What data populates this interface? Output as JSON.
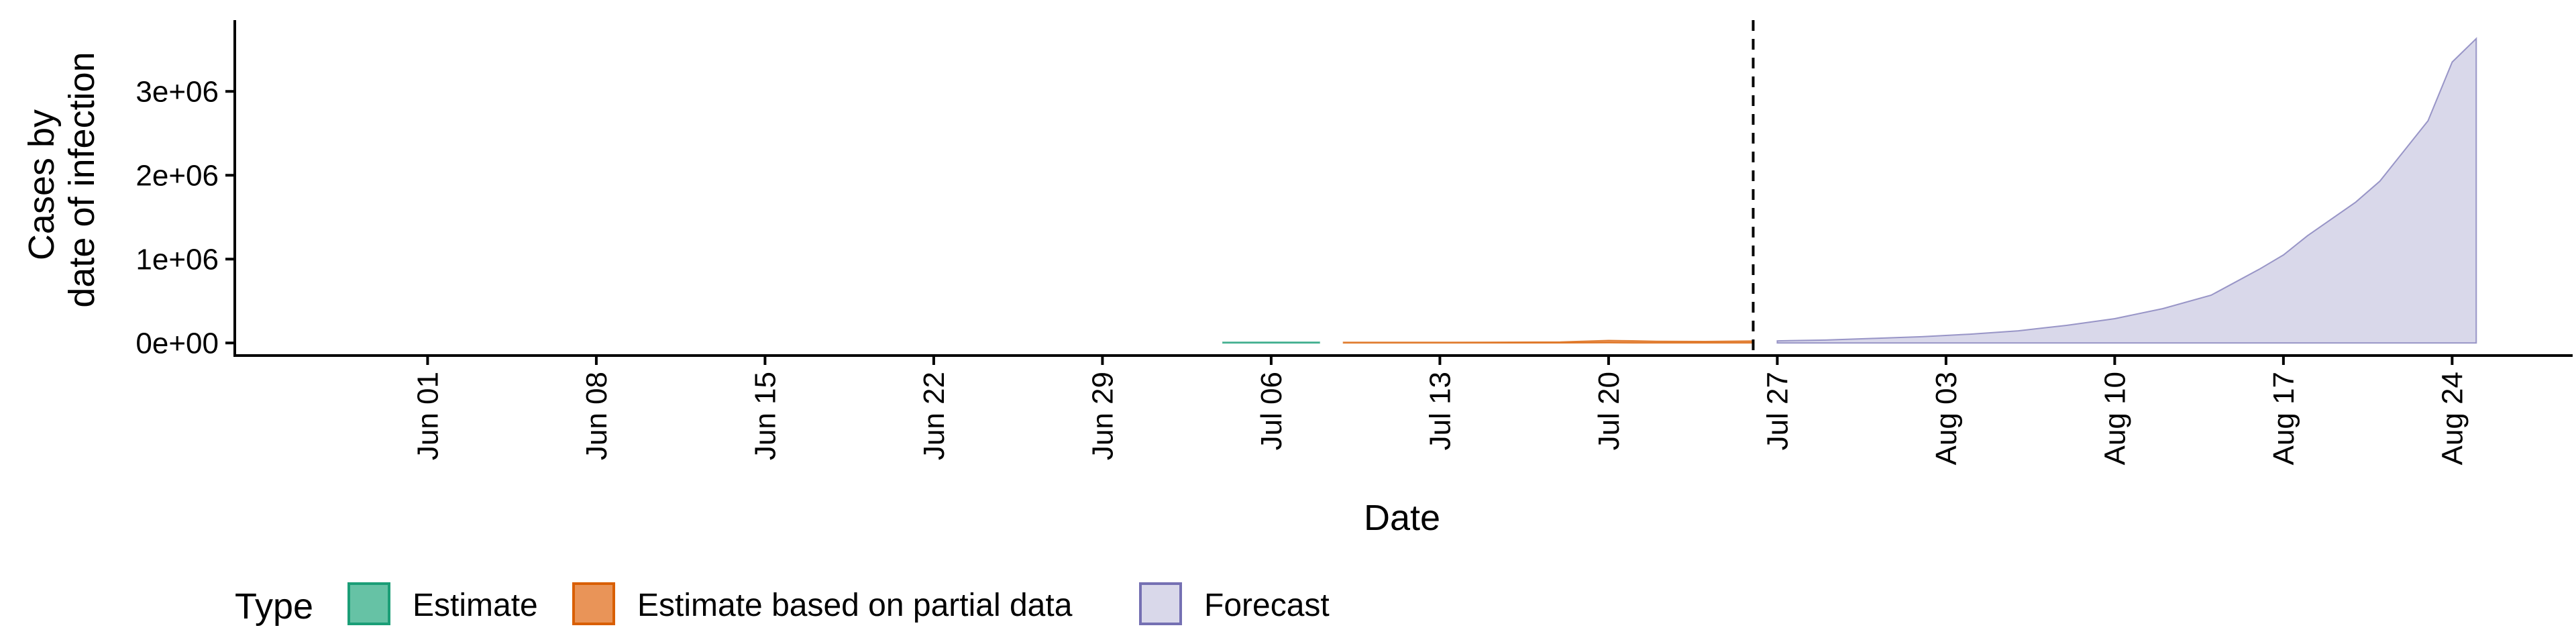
{
  "chart_data": {
    "type": "area",
    "xlabel": "Date",
    "ylabel": [
      "Cases by",
      "date of infection"
    ],
    "y_ticks": [
      {
        "value": 0,
        "label": "0e+00"
      },
      {
        "value": 1000000,
        "label": "1e+06"
      },
      {
        "value": 2000000,
        "label": "2e+06"
      },
      {
        "value": 3000000,
        "label": "3e+06"
      }
    ],
    "ylim": [
      -150000,
      3850000
    ],
    "xlim": [
      "2020-05-24",
      "2020-08-29"
    ],
    "x_ticks": [
      {
        "date": "2020-06-01",
        "label": "Jun 01"
      },
      {
        "date": "2020-06-08",
        "label": "Jun 08"
      },
      {
        "date": "2020-06-15",
        "label": "Jun 15"
      },
      {
        "date": "2020-06-22",
        "label": "Jun 22"
      },
      {
        "date": "2020-06-29",
        "label": "Jun 29"
      },
      {
        "date": "2020-07-06",
        "label": "Jul 06"
      },
      {
        "date": "2020-07-13",
        "label": "Jul 13"
      },
      {
        "date": "2020-07-20",
        "label": "Jul 20"
      },
      {
        "date": "2020-07-27",
        "label": "Jul 27"
      },
      {
        "date": "2020-08-03",
        "label": "Aug 03"
      },
      {
        "date": "2020-08-10",
        "label": "Aug 10"
      },
      {
        "date": "2020-08-17",
        "label": "Aug 17"
      },
      {
        "date": "2020-08-24",
        "label": "Aug 24"
      }
    ],
    "vline": {
      "date": "2020-07-26",
      "style": "dashed"
    },
    "legend": {
      "title": "Type",
      "position": "bottom"
    },
    "series": [
      {
        "name": "Estimate",
        "fill": "#66C2A5",
        "stroke": "#1B9E77",
        "points": [
          {
            "date": "2020-07-04",
            "lower": 0,
            "upper": 8000
          },
          {
            "date": "2020-07-06",
            "lower": 0,
            "upper": 9000
          },
          {
            "date": "2020-07-08",
            "lower": 0,
            "upper": 9000
          }
        ]
      },
      {
        "name": "Estimate based on partial data",
        "fill": "#E99458",
        "stroke": "#D95F02",
        "points": [
          {
            "date": "2020-07-09",
            "lower": 0,
            "upper": 8000
          },
          {
            "date": "2020-07-12",
            "lower": 0,
            "upper": 8000
          },
          {
            "date": "2020-07-15",
            "lower": 0,
            "upper": 9000
          },
          {
            "date": "2020-07-18",
            "lower": 0,
            "upper": 12000
          },
          {
            "date": "2020-07-20",
            "lower": 2000,
            "upper": 30000
          },
          {
            "date": "2020-07-21",
            "lower": 0,
            "upper": 26000
          },
          {
            "date": "2020-07-22",
            "lower": 0,
            "upper": 20000
          },
          {
            "date": "2020-07-24",
            "lower": 0,
            "upper": 18000
          },
          {
            "date": "2020-07-26",
            "lower": 0,
            "upper": 24000
          }
        ]
      },
      {
        "name": "Forecast",
        "fill": "#D9D8EA",
        "stroke": "#7570B3",
        "points": [
          {
            "date": "2020-07-27",
            "lower": 0,
            "upper": 25000
          },
          {
            "date": "2020-07-29",
            "lower": 0,
            "upper": 35000
          },
          {
            "date": "2020-07-31",
            "lower": 0,
            "upper": 55000
          },
          {
            "date": "2020-08-02",
            "lower": 0,
            "upper": 75000
          },
          {
            "date": "2020-08-04",
            "lower": 0,
            "upper": 105000
          },
          {
            "date": "2020-08-06",
            "lower": 0,
            "upper": 145000
          },
          {
            "date": "2020-08-08",
            "lower": 0,
            "upper": 210000
          },
          {
            "date": "2020-08-10",
            "lower": 0,
            "upper": 290000
          },
          {
            "date": "2020-08-12",
            "lower": 0,
            "upper": 410000
          },
          {
            "date": "2020-08-14",
            "lower": 0,
            "upper": 570000
          },
          {
            "date": "2020-08-16",
            "lower": 0,
            "upper": 880000
          },
          {
            "date": "2020-08-17",
            "lower": 0,
            "upper": 1050000
          },
          {
            "date": "2020-08-18",
            "lower": 0,
            "upper": 1280000
          },
          {
            "date": "2020-08-20",
            "lower": 0,
            "upper": 1680000
          },
          {
            "date": "2020-08-21",
            "lower": 0,
            "upper": 1930000
          },
          {
            "date": "2020-08-23",
            "lower": 0,
            "upper": 2650000
          },
          {
            "date": "2020-08-24",
            "lower": 0,
            "upper": 3350000
          },
          {
            "date": "2020-08-25",
            "lower": 0,
            "upper": 3630000
          }
        ]
      }
    ]
  }
}
